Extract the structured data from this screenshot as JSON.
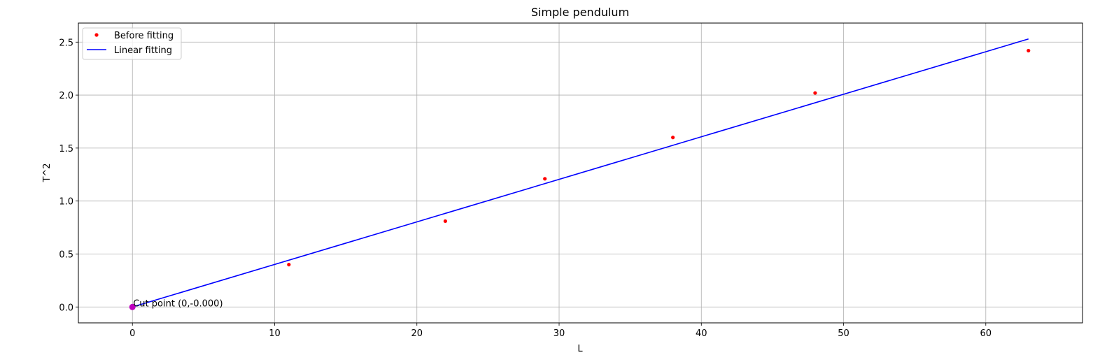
{
  "chart_data": {
    "type": "scatter",
    "title": "Simple pendulum",
    "xlabel": "L",
    "ylabel": "T^2",
    "xlim": [
      -3.8,
      66.8
    ],
    "ylim": [
      -0.15,
      2.68
    ],
    "xticks": [
      0,
      10,
      20,
      30,
      40,
      50,
      60
    ],
    "yticks": [
      0.0,
      0.5,
      1.0,
      1.5,
      2.0,
      2.5
    ],
    "xtick_labels": [
      "0",
      "10",
      "20",
      "30",
      "40",
      "50",
      "60"
    ],
    "ytick_labels": [
      "0.0",
      "0.5",
      "1.0",
      "1.5",
      "2.0",
      "2.5"
    ],
    "grid": true,
    "legend_position": "top-left",
    "series": [
      {
        "name": "Before fitting",
        "type": "scatter",
        "color": "#ff0000",
        "x": [
          11,
          22,
          29,
          38,
          48,
          63
        ],
        "y": [
          0.4,
          0.81,
          1.21,
          1.6,
          2.02,
          2.42
        ]
      },
      {
        "name": "Linear fitting",
        "type": "line",
        "color": "#0000ff",
        "x": [
          0,
          63
        ],
        "y": [
          0.0,
          2.53
        ]
      }
    ],
    "annotations": [
      {
        "text": "Cut point (0,-0.000)",
        "x": 0,
        "y": 0.0,
        "marker_color": "#bf00bf"
      }
    ]
  }
}
